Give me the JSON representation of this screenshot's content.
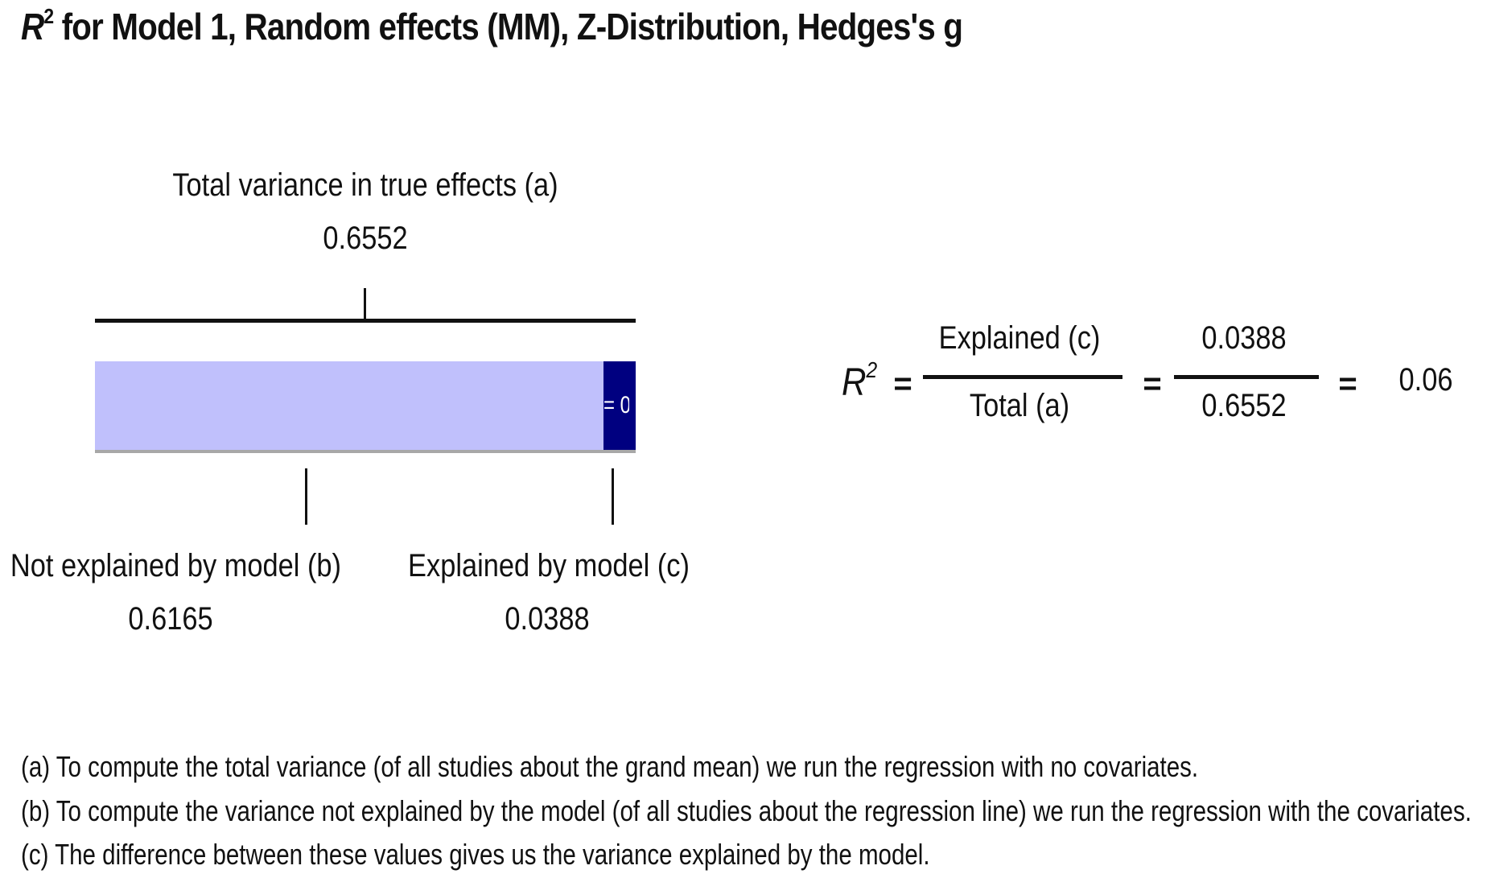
{
  "title": {
    "symbol": "R",
    "superscript": "2",
    "text": " for Model 1, Random effects (MM), Z-Distribution, Hedges's g"
  },
  "total": {
    "label": "Total variance in true effects (a)",
    "value": "0.6552"
  },
  "not_explained": {
    "label": "Not explained by model (b)",
    "value": "0.6165"
  },
  "explained": {
    "label": "Explained by model (c)",
    "value": "0.0388"
  },
  "bar": {
    "total": 0.6552,
    "segments": [
      {
        "name": "not-explained",
        "value": 0.6165,
        "color": "#c0c0fc",
        "text": ""
      },
      {
        "name": "explained",
        "value": 0.0388,
        "color": "#000080",
        "text": "= 0."
      }
    ]
  },
  "formula": {
    "symbol": "R",
    "superscript": "2",
    "equals": "=",
    "numerator_label": "Explained (c)",
    "denominator_label": "Total (a)",
    "numerator_value": "0.0388",
    "denominator_value": "0.6552",
    "result": "0.06"
  },
  "notes": [
    "(a) To compute the total variance (of all studies about the grand mean) we run the regression with no covariates.",
    "(b) To compute the variance not explained by the model (of all studies about the regression line) we run the regression with the covariates.",
    "(c) The difference between these values gives us the variance explained by the model."
  ]
}
